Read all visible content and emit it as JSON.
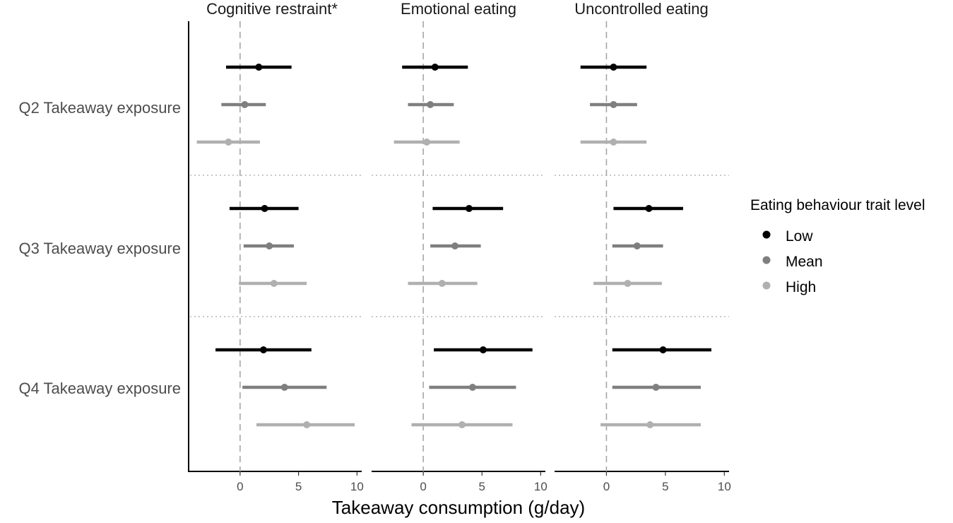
{
  "chart_data": {
    "type": "forest",
    "xlabel": "Takeaway consumption (g/day)",
    "facets": [
      "Cognitive restraint*",
      "Emotional eating",
      "Uncontrolled eating"
    ],
    "rows": [
      "Q2 Takeaway exposure",
      "Q3 Takeaway exposure",
      "Q4 Takeaway exposure"
    ],
    "x_ticks": [
      0,
      5,
      10
    ],
    "xlim": [
      -4.4,
      10.4
    ],
    "reference_line": 0,
    "legend": {
      "title": "Eating behaviour trait level",
      "position": "right",
      "levels": [
        {
          "name": "Low",
          "color": "#000000"
        },
        {
          "name": "Mean",
          "color": "#7f7f7f"
        },
        {
          "name": "High",
          "color": "#b0b0b0"
        }
      ]
    },
    "estimates": [
      {
        "facet": "Cognitive restraint*",
        "row": "Q2 Takeaway exposure",
        "level": "Low",
        "est": 1.6,
        "lo": -1.2,
        "hi": 4.4
      },
      {
        "facet": "Cognitive restraint*",
        "row": "Q2 Takeaway exposure",
        "level": "Mean",
        "est": 0.4,
        "lo": -1.6,
        "hi": 2.2
      },
      {
        "facet": "Cognitive restraint*",
        "row": "Q2 Takeaway exposure",
        "level": "High",
        "est": -1.0,
        "lo": -3.7,
        "hi": 1.7
      },
      {
        "facet": "Cognitive restraint*",
        "row": "Q3 Takeaway exposure",
        "level": "Low",
        "est": 2.1,
        "lo": -0.9,
        "hi": 5.0
      },
      {
        "facet": "Cognitive restraint*",
        "row": "Q3 Takeaway exposure",
        "level": "Mean",
        "est": 2.5,
        "lo": 0.3,
        "hi": 4.6
      },
      {
        "facet": "Cognitive restraint*",
        "row": "Q3 Takeaway exposure",
        "level": "High",
        "est": 2.9,
        "lo": -0.1,
        "hi": 5.7
      },
      {
        "facet": "Cognitive restraint*",
        "row": "Q4 Takeaway exposure",
        "level": "Low",
        "est": 2.0,
        "lo": -2.1,
        "hi": 6.1
      },
      {
        "facet": "Cognitive restraint*",
        "row": "Q4 Takeaway exposure",
        "level": "Mean",
        "est": 3.8,
        "lo": 0.2,
        "hi": 7.4
      },
      {
        "facet": "Cognitive restraint*",
        "row": "Q4 Takeaway exposure",
        "level": "High",
        "est": 5.7,
        "lo": 1.4,
        "hi": 9.8
      },
      {
        "facet": "Emotional eating",
        "row": "Q2 Takeaway exposure",
        "level": "Low",
        "est": 1.0,
        "lo": -1.8,
        "hi": 3.8
      },
      {
        "facet": "Emotional eating",
        "row": "Q2 Takeaway exposure",
        "level": "Mean",
        "est": 0.6,
        "lo": -1.3,
        "hi": 2.6
      },
      {
        "facet": "Emotional eating",
        "row": "Q2 Takeaway exposure",
        "level": "High",
        "est": 0.3,
        "lo": -2.5,
        "hi": 3.1
      },
      {
        "facet": "Emotional eating",
        "row": "Q3 Takeaway exposure",
        "level": "Low",
        "est": 3.9,
        "lo": 0.8,
        "hi": 6.8
      },
      {
        "facet": "Emotional eating",
        "row": "Q3 Takeaway exposure",
        "level": "Mean",
        "est": 2.7,
        "lo": 0.6,
        "hi": 4.9
      },
      {
        "facet": "Emotional eating",
        "row": "Q3 Takeaway exposure",
        "level": "High",
        "est": 1.6,
        "lo": -1.3,
        "hi": 4.6
      },
      {
        "facet": "Emotional eating",
        "row": "Q4 Takeaway exposure",
        "level": "Low",
        "est": 5.1,
        "lo": 0.9,
        "hi": 9.3
      },
      {
        "facet": "Emotional eating",
        "row": "Q4 Takeaway exposure",
        "level": "Mean",
        "est": 4.2,
        "lo": 0.5,
        "hi": 7.9
      },
      {
        "facet": "Emotional eating",
        "row": "Q4 Takeaway exposure",
        "level": "High",
        "est": 3.3,
        "lo": -1.0,
        "hi": 7.6
      },
      {
        "facet": "Uncontrolled eating",
        "row": "Q2 Takeaway exposure",
        "level": "Low",
        "est": 0.6,
        "lo": -2.2,
        "hi": 3.4
      },
      {
        "facet": "Uncontrolled eating",
        "row": "Q2 Takeaway exposure",
        "level": "Mean",
        "est": 0.6,
        "lo": -1.4,
        "hi": 2.6
      },
      {
        "facet": "Uncontrolled eating",
        "row": "Q2 Takeaway exposure",
        "level": "High",
        "est": 0.6,
        "lo": -2.2,
        "hi": 3.4
      },
      {
        "facet": "Uncontrolled eating",
        "row": "Q3 Takeaway exposure",
        "level": "Low",
        "est": 3.6,
        "lo": 0.6,
        "hi": 6.5
      },
      {
        "facet": "Uncontrolled eating",
        "row": "Q3 Takeaway exposure",
        "level": "Mean",
        "est": 2.6,
        "lo": 0.5,
        "hi": 4.8
      },
      {
        "facet": "Uncontrolled eating",
        "row": "Q3 Takeaway exposure",
        "level": "High",
        "est": 1.8,
        "lo": -1.1,
        "hi": 4.7
      },
      {
        "facet": "Uncontrolled eating",
        "row": "Q4 Takeaway exposure",
        "level": "Low",
        "est": 4.8,
        "lo": 0.5,
        "hi": 8.9
      },
      {
        "facet": "Uncontrolled eating",
        "row": "Q4 Takeaway exposure",
        "level": "Mean",
        "est": 4.2,
        "lo": 0.5,
        "hi": 8.0
      },
      {
        "facet": "Uncontrolled eating",
        "row": "Q4 Takeaway exposure",
        "level": "High",
        "est": 3.7,
        "lo": -0.5,
        "hi": 8.0
      }
    ]
  }
}
